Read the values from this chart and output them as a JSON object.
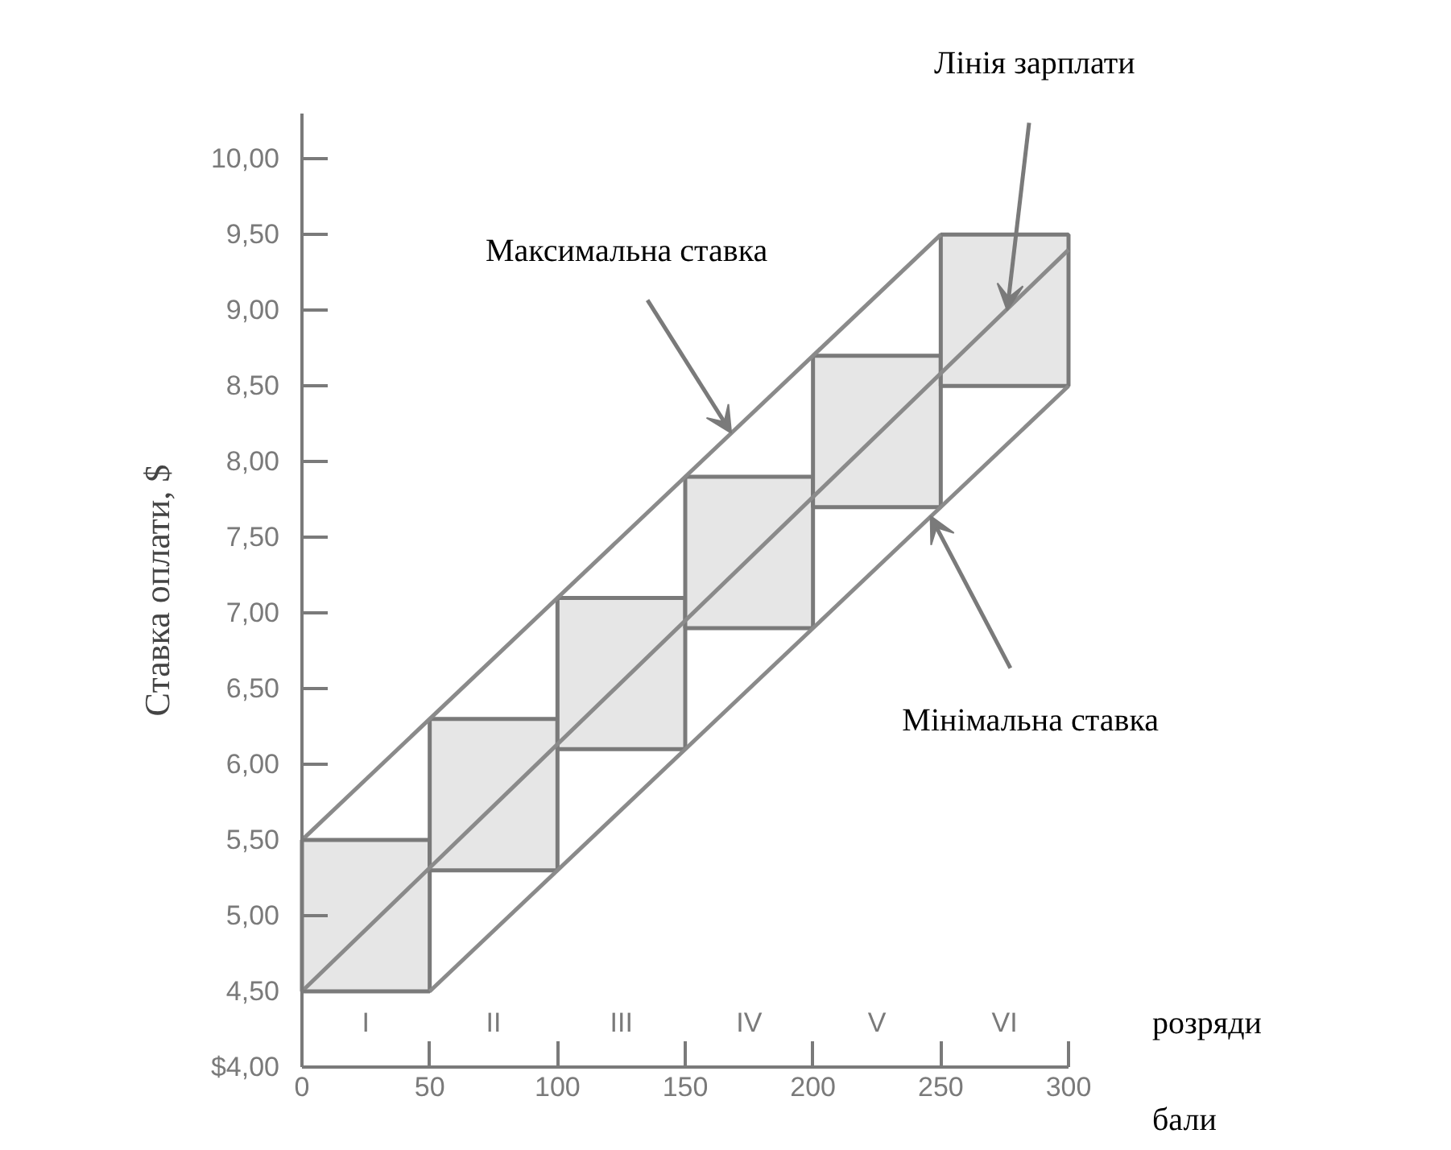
{
  "chart_data": {
    "type": "line",
    "ylabel": "Ставка оплати, $",
    "xlabel": "бали",
    "xlim": [
      0,
      300
    ],
    "ylim": [
      4.0,
      10.3
    ],
    "xticks": [
      0,
      50,
      100,
      150,
      200,
      250,
      300
    ],
    "yticks": [
      {
        "value": 4.0,
        "label": "$4,00"
      },
      {
        "value": 4.5,
        "label": "4,50"
      },
      {
        "value": 5.0,
        "label": "5,00"
      },
      {
        "value": 5.5,
        "label": "5,50"
      },
      {
        "value": 6.0,
        "label": "6,00"
      },
      {
        "value": 6.5,
        "label": "6,50"
      },
      {
        "value": 7.0,
        "label": "7,00"
      },
      {
        "value": 7.5,
        "label": "7,50"
      },
      {
        "value": 8.0,
        "label": "8,00"
      },
      {
        "value": 8.5,
        "label": "8,50"
      },
      {
        "value": 9.0,
        "label": "9,00"
      },
      {
        "value": 9.5,
        "label": "9,50"
      },
      {
        "value": 10.0,
        "label": "10,00"
      }
    ],
    "series": [
      {
        "type": "bar",
        "color": "#e6e6e6",
        "x": [
          25,
          75,
          125,
          175,
          225,
          275
        ],
        "base": [
          4.5,
          5.3,
          6.1,
          6.9,
          7.7,
          8.5
        ],
        "values": [
          1.0,
          1.0,
          1.0,
          1.0,
          1.0,
          1.0
        ]
      },
      {
        "color": "#8a8a8a",
        "x": [
          0,
          250
        ],
        "values": [
          5.5,
          9.5
        ]
      },
      {
        "color": "#8a8a8a",
        "x": [
          0,
          300
        ],
        "values": [
          4.5,
          9.4
        ]
      },
      {
        "color": "#8a8a8a",
        "x": [
          50,
          300
        ],
        "values": [
          4.5,
          8.5
        ]
      }
    ],
    "annotations": [
      {
        "text": "Максимальна ставка",
        "x": 168,
        "y": 8.19
      },
      {
        "text": "Лінія зарплати",
        "x": 276,
        "y": 9.0
      },
      {
        "text": "Мінімальна ставка",
        "x": 246,
        "y": 7.64
      },
      "I",
      "II",
      "III",
      "IV",
      "V",
      "VI",
      "розряди"
    ],
    "grid": false,
    "marker": "none",
    "line_style": "solid"
  }
}
